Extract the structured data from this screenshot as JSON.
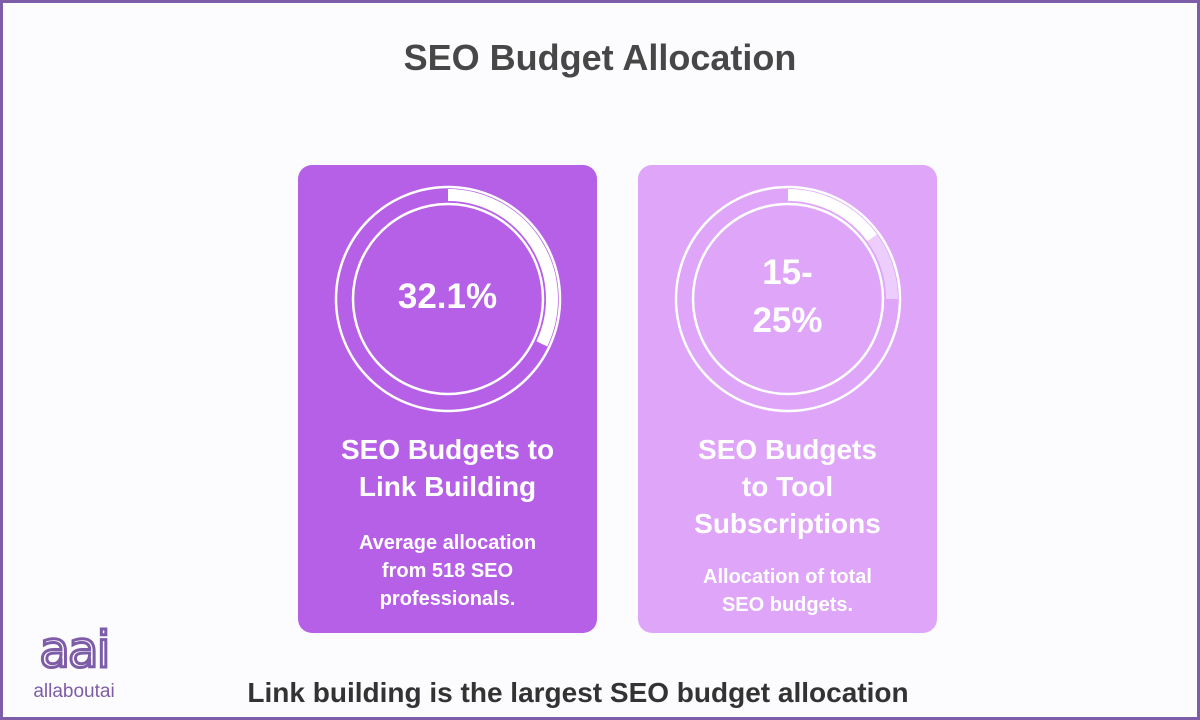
{
  "title": "SEO Budget Allocation",
  "cards": [
    {
      "value_label": "32.1%",
      "value": 32.1,
      "heading": "SEO Budgets to Link Building",
      "description": "Average allocation from 518 SEO professionals."
    },
    {
      "value_label": "15-25%",
      "range": [
        15,
        25
      ],
      "heading": "SEO Budgets to Tool Subscriptions",
      "description": "Allocation of total SEO budgets."
    }
  ],
  "logo": {
    "mark": "aai",
    "name": "allaboutai"
  },
  "footer": "Link building is the largest SEO budget allocation"
}
